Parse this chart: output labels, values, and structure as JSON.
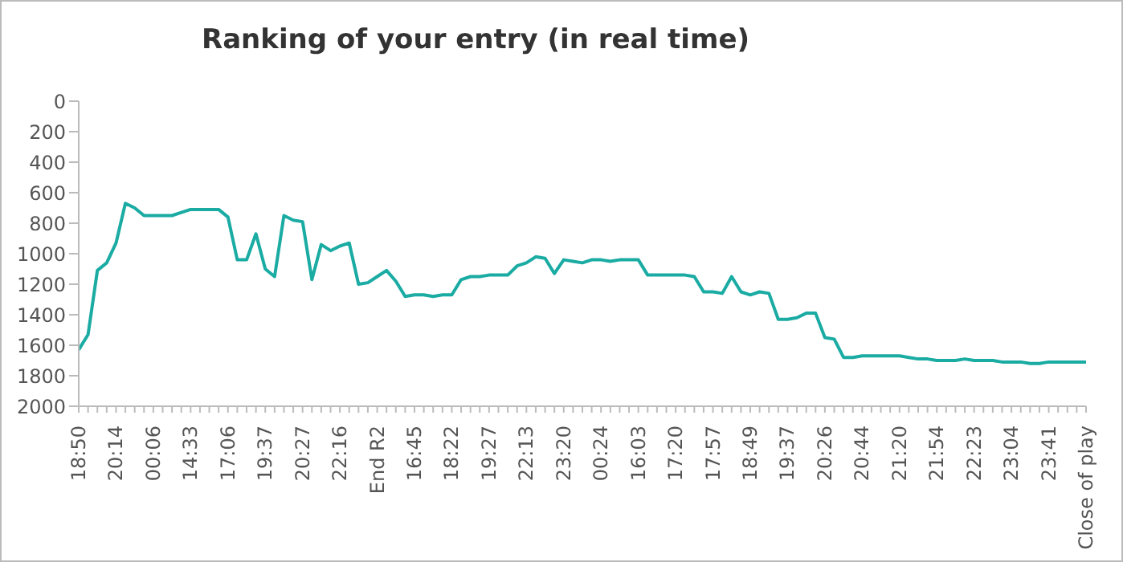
{
  "chart_data": {
    "type": "line",
    "title": "Ranking of your entry (in real time)",
    "categories": [
      "18:50",
      null,
      null,
      null,
      "20:14",
      null,
      null,
      null,
      "00:06",
      null,
      null,
      null,
      "14:33",
      null,
      null,
      null,
      "17:06",
      null,
      null,
      null,
      "19:37",
      null,
      null,
      null,
      "20:27",
      null,
      null,
      null,
      "22:16",
      null,
      null,
      null,
      "End R2",
      null,
      null,
      null,
      "16:45",
      null,
      null,
      null,
      "18:22",
      null,
      null,
      null,
      "19:27",
      null,
      null,
      null,
      "22:13",
      null,
      null,
      null,
      "23:20",
      null,
      null,
      null,
      "00:24",
      null,
      null,
      null,
      "16:03",
      null,
      null,
      null,
      "17:20",
      null,
      null,
      null,
      "17:57",
      null,
      null,
      null,
      "18:49",
      null,
      null,
      null,
      "19:37",
      null,
      null,
      null,
      "20:26",
      null,
      null,
      null,
      "20:44",
      null,
      null,
      null,
      "21:20",
      null,
      null,
      null,
      "21:54",
      null,
      null,
      null,
      "22:23",
      null,
      null,
      null,
      "23:04",
      null,
      null,
      null,
      "23:41",
      null,
      null,
      null,
      "Close of play"
    ],
    "series": [
      {
        "color": "#1aaba3",
        "values": [
          1630,
          1530,
          1110,
          1060,
          930,
          670,
          700,
          750,
          750,
          750,
          750,
          730,
          710,
          710,
          710,
          710,
          760,
          1040,
          1040,
          870,
          1100,
          1150,
          750,
          780,
          790,
          1170,
          940,
          980,
          950,
          930,
          1200,
          1190,
          1150,
          1110,
          1180,
          1280,
          1270,
          1270,
          1280,
          1270,
          1270,
          1170,
          1150,
          1150,
          1140,
          1140,
          1140,
          1080,
          1060,
          1020,
          1030,
          1130,
          1040,
          1050,
          1060,
          1040,
          1040,
          1050,
          1040,
          1040,
          1040,
          1140,
          1140,
          1140,
          1140,
          1140,
          1150,
          1250,
          1250,
          1260,
          1150,
          1250,
          1270,
          1250,
          1260,
          1430,
          1430,
          1420,
          1390,
          1390,
          1550,
          1560,
          1680,
          1680,
          1670,
          1670,
          1670,
          1670,
          1670,
          1680,
          1690,
          1690,
          1700,
          1700,
          1700,
          1690,
          1700,
          1700,
          1700,
          1710,
          1710,
          1710,
          1720,
          1720,
          1710,
          1710,
          1710,
          1710,
          1710
        ]
      }
    ],
    "ylim": [
      2000,
      0
    ],
    "yticks": [
      0,
      200,
      400,
      600,
      800,
      1000,
      1200,
      1400,
      1600,
      1800,
      2000
    ],
    "grid": false,
    "legend": false,
    "marker": "none",
    "line_style": "solid"
  }
}
